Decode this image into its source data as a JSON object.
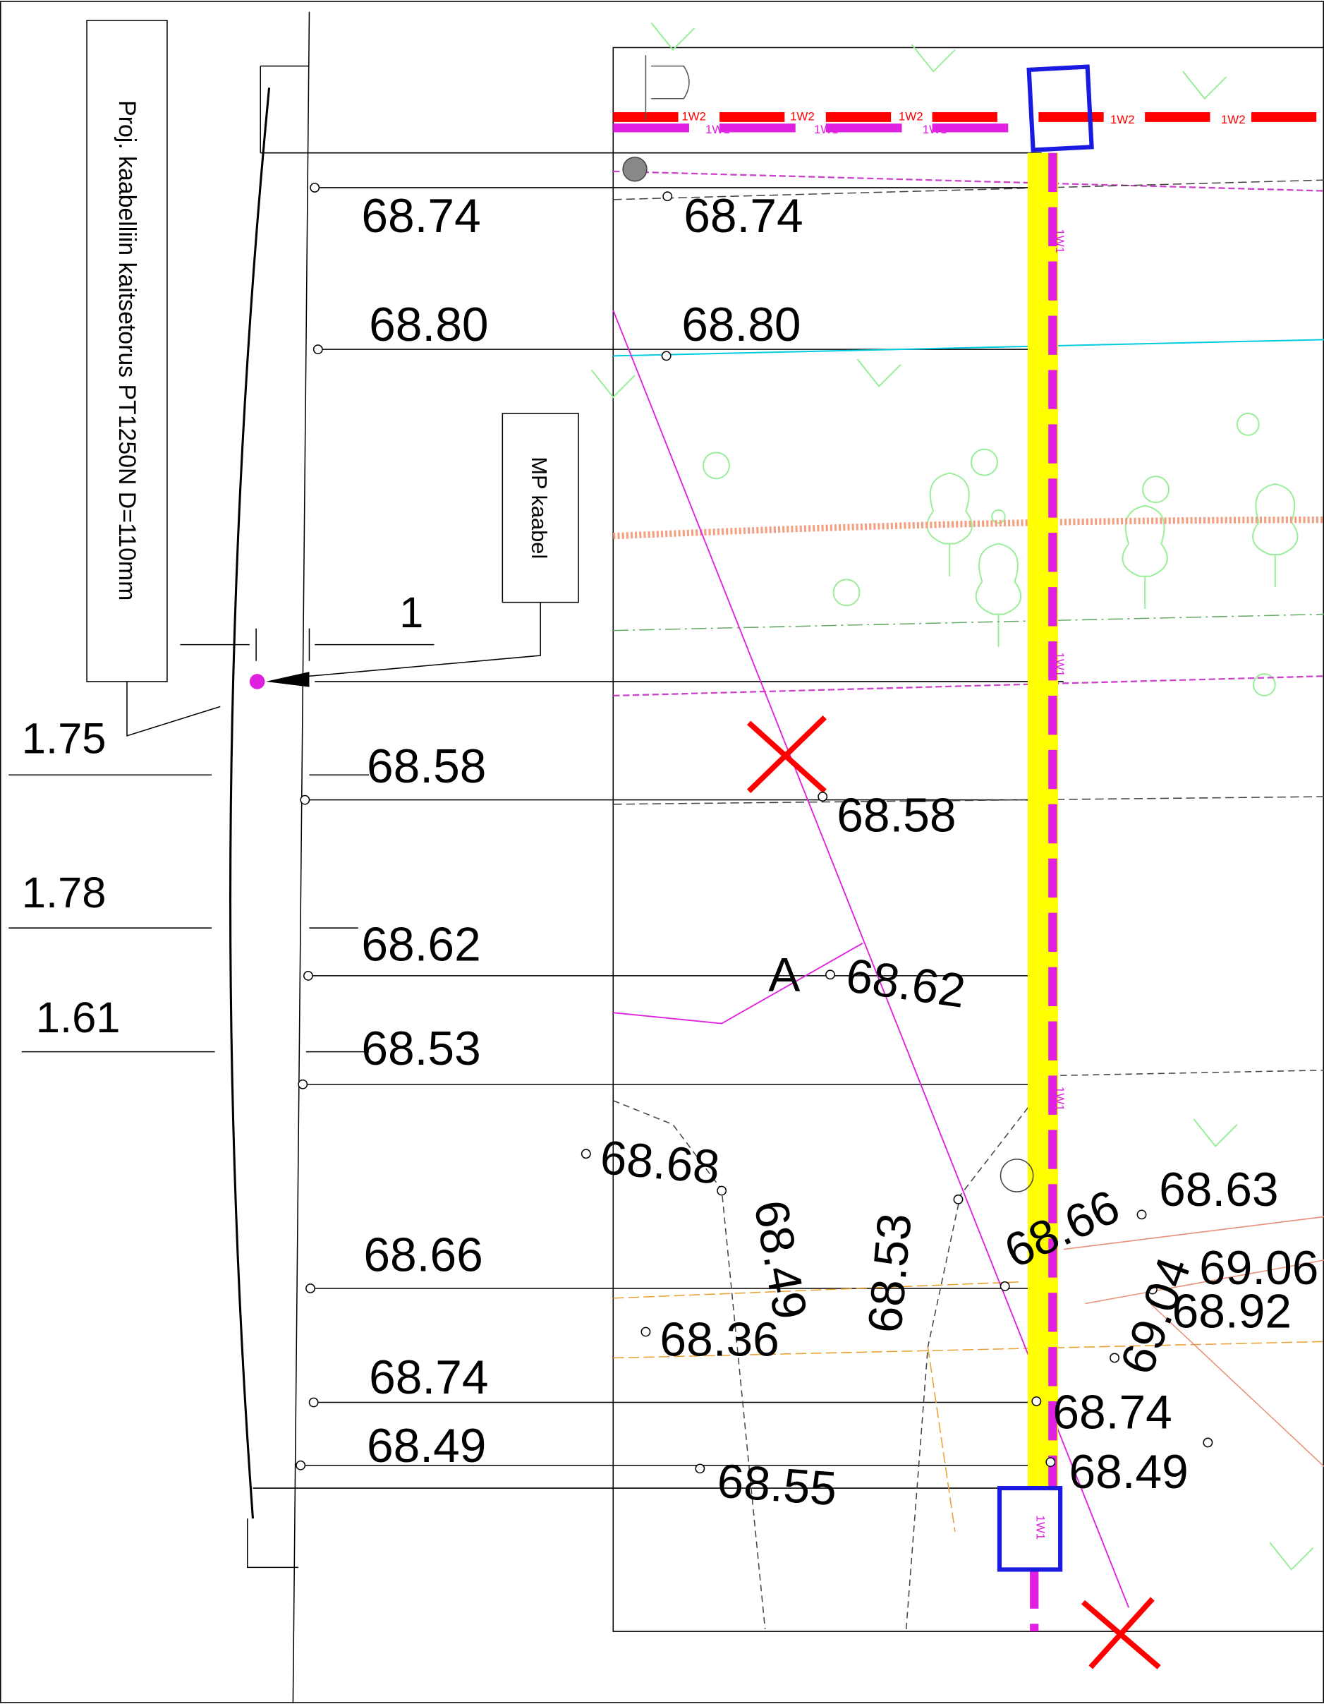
{
  "profile": {
    "note": "Proj. kaabelliin kaitsetorus PT1250N D=110mm",
    "mp_label": "MP kaabel",
    "offset": "1",
    "distances": [
      "1.75",
      "1.78",
      "1.61"
    ],
    "elevations": [
      "68.74",
      "68.80",
      "68.58",
      "68.62",
      "68.53",
      "68.66",
      "68.74",
      "68.49"
    ]
  },
  "plan": {
    "point_label": "A",
    "cable_w1": "1W1",
    "cable_w2": "1W2",
    "elevations": [
      "68.74",
      "68.80",
      "68.58",
      "68.62",
      "68.68",
      "68.49",
      "68.53",
      "68.36",
      "68.55",
      "68.66",
      "68.63",
      "69.06",
      "68.92",
      "69.04",
      "68.74",
      "68.49"
    ]
  }
}
